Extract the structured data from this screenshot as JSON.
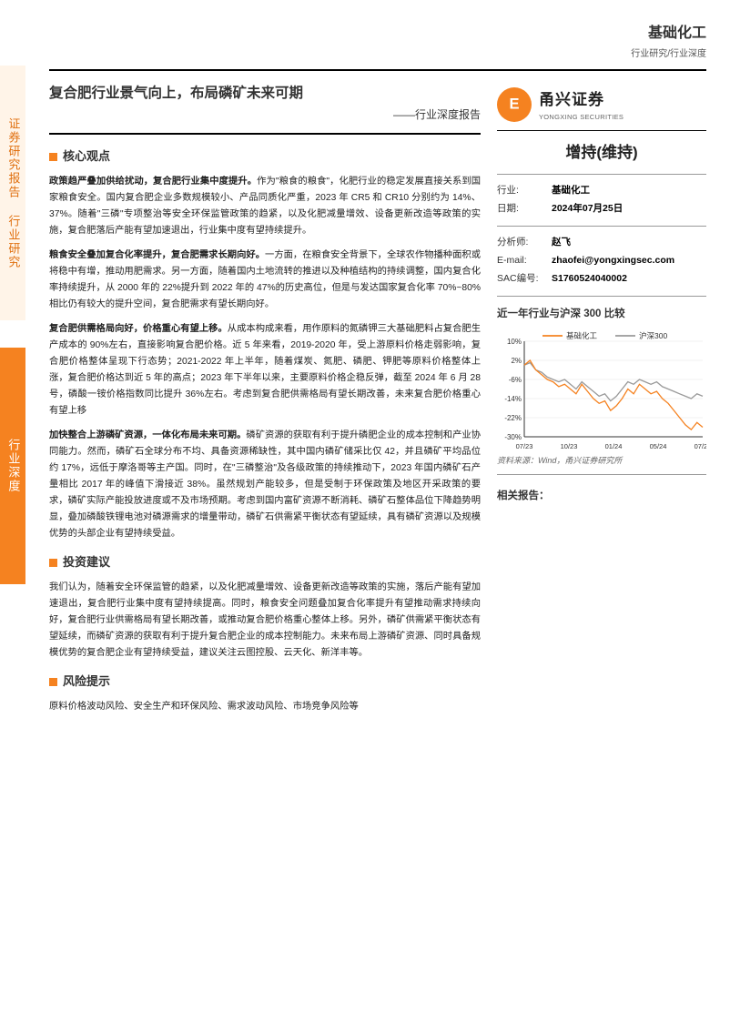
{
  "header": {
    "category": "基础化工",
    "sub_category": "行业研究/行业深度"
  },
  "left_rail": {
    "seg1": "证券研究报告 行业研究",
    "seg2": "行业深度"
  },
  "title": {
    "main": "复合肥行业景气向上，布局磷矿未来可期",
    "sub": "——行业深度报告"
  },
  "sections": {
    "core_view": "核心观点",
    "investment_advice": "投资建议",
    "risk": "风险提示"
  },
  "core_paras": [
    {
      "lead": "政策趋严叠加供给扰动，复合肥行业集中度提升。",
      "body": "作为\"粮食的粮食\"，化肥行业的稳定发展直接关系到国家粮食安全。国内复合肥企业多数规模较小、产品同质化严重，2023 年 CR5 和 CR10 分别约为 14%、37%。随着\"三磷\"专项整治等安全环保监管政策的趋紧，以及化肥减量增效、设备更新改造等政策的实施，复合肥落后产能有望加速退出，行业集中度有望持续提升。"
    },
    {
      "lead": "粮食安全叠加复合化率提升，复合肥需求长期向好。",
      "body": "一方面，在粮食安全背景下，全球农作物播种面积或将稳中有增，推动用肥需求。另一方面，随着国内土地流转的推进以及种植结构的持续调整，国内复合化率持续提升，从 2000 年的 22%提升到 2022 年的 47%的历史高位，但是与发达国家复合化率 70%~80%相比仍有较大的提升空间，复合肥需求有望长期向好。"
    },
    {
      "lead": "复合肥供需格局向好，价格重心有望上移。",
      "body": "从成本构成来看，用作原料的氮磷钾三大基础肥料占复合肥生产成本的 90%左右，直接影响复合肥价格。近 5 年来看，2019-2020 年，受上游原料价格走弱影响，复合肥价格整体呈现下行态势；2021-2022 年上半年，随着煤炭、氮肥、磷肥、钾肥等原料价格整体上涨，复合肥价格达到近 5 年的高点；2023 年下半年以来，主要原料价格企稳反弹，截至 2024 年 6 月 28 号，磷酸一铵价格指数同比提升 36%左右。考虑到复合肥供需格局有望长期改善，未来复合肥价格重心有望上移"
    },
    {
      "lead": "加快整合上游磷矿资源，一体化布局未来可期。",
      "body": "磷矿资源的获取有利于提升磷肥企业的成本控制和产业协同能力。然而，磷矿石全球分布不均、具备资源稀缺性，其中国内磷矿储采比仅 42，并且磷矿平均品位约 17%，远低于摩洛哥等主产国。同时，在\"三磷整治\"及各级政策的持续推动下，2023 年国内磷矿石产量相比 2017 年的峰值下滑接近 38%。虽然规划产能较多，但是受制于环保政策及地区开采政策的要求，磷矿实际产能投放进度或不及市场预期。考虑到国内富矿资源不断消耗、磷矿石整体品位下降趋势明显，叠加磷酸铁锂电池对磷源需求的增量带动，磷矿石供需紧平衡状态有望延续，具有磷矿资源以及规模优势的头部企业有望持续受益。"
    }
  ],
  "investment_para": "我们认为，随着安全环保监管的趋紧，以及化肥减量增效、设备更新改造等政策的实施，落后产能有望加速退出，复合肥行业集中度有望持续提高。同时，粮食安全问题叠加复合化率提升有望推动需求持续向好，复合肥行业供需格局有望长期改善，或推动复合肥价格重心整体上移。另外，磷矿供需紧平衡状态有望延续，而磷矿资源的获取有利于提升复合肥企业的成本控制能力。未来布局上游磷矿资源、同时具备规模优势的复合肥企业有望持续受益，建议关注云图控股、云天化、新洋丰等。",
  "risk_para": "原料价格波动风险、安全生产和环保风险、需求波动风险、市场竞争风险等",
  "right": {
    "logo_cn": "甬兴证券",
    "logo_en": "YONGXING SECURITIES",
    "rating": "增持(维持)",
    "info": [
      {
        "k": "行业:",
        "v": "基础化工"
      },
      {
        "k": "日期:",
        "v": "2024年07月25日"
      },
      {
        "k": "分析师:",
        "v": "赵飞"
      },
      {
        "k": "E-mail:",
        "v": "zhaofei@yongxingsec.com"
      },
      {
        "k": "SAC编号:",
        "v": "S1760524040002"
      }
    ],
    "chart_title": "近一年行业与沪深 300 比较",
    "chart_source": "资料来源：Wind，甬兴证券研究所",
    "related_title": "相关报告：",
    "chart": {
      "type": "line",
      "legend": [
        "基础化工",
        "沪深300"
      ],
      "colors": {
        "series1": "#f58220",
        "series2": "#999999",
        "axis": "#333333",
        "grid": "#e6e6e6"
      },
      "y_ticks": [
        10,
        2,
        -6,
        -14,
        -22,
        -30
      ],
      "y_tick_labels": [
        "10%",
        "2%",
        "-6%",
        "-14%",
        "-22%",
        "-30%"
      ],
      "ylim": [
        -30,
        10
      ],
      "x_labels": [
        "07/23",
        "10/23",
        "01/24",
        "05/24",
        "07/24"
      ],
      "series1_points": [
        0,
        2,
        -2,
        -4,
        -6,
        -7,
        -9,
        -8,
        -10,
        -12,
        -8,
        -11,
        -14,
        -16,
        -15,
        -19,
        -17,
        -14,
        -10,
        -12,
        -8,
        -10,
        -12,
        -11,
        -14,
        -16,
        -19,
        -22,
        -25,
        -27,
        -24,
        -26
      ],
      "series2_points": [
        0,
        1,
        -2,
        -3,
        -5,
        -6,
        -7,
        -6,
        -8,
        -10,
        -7,
        -9,
        -11,
        -13,
        -12,
        -15,
        -13,
        -10,
        -7,
        -8,
        -6,
        -7,
        -8,
        -7,
        -9,
        -10,
        -11,
        -12,
        -13,
        -14,
        -12,
        -13
      ],
      "background_color": "#ffffff"
    }
  },
  "accent_color": "#f58220"
}
